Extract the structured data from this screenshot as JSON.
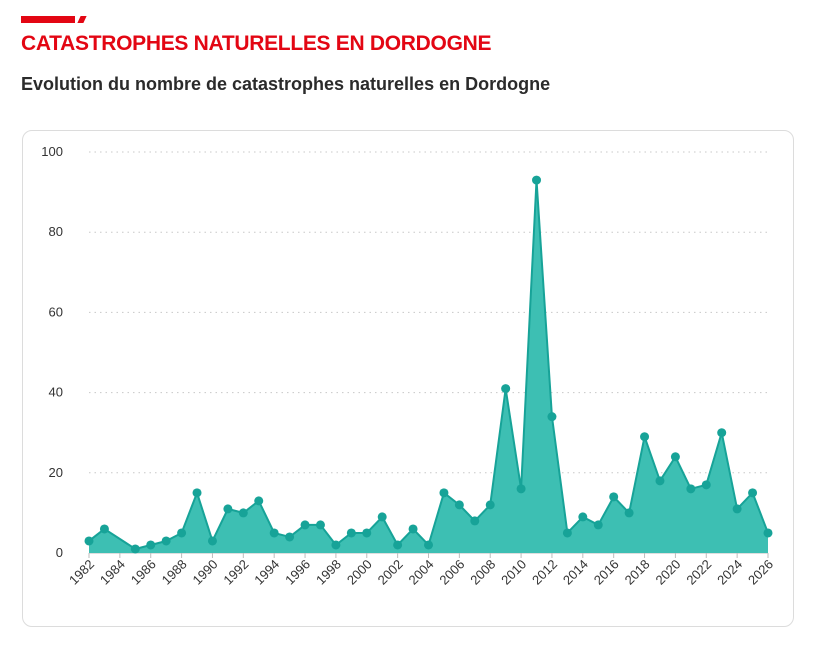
{
  "header": {
    "section_title": "CATASTROPHES NATURELLES EN DORDOGNE",
    "chart_title": "Evolution du nombre de catastrophes naturelles en Dordogne"
  },
  "colors": {
    "accent": "#e30613",
    "series_line": "#17a398",
    "series_fill": "#3dbfb3"
  },
  "chart_data": {
    "type": "area",
    "title": "Evolution du nombre de catastrophes naturelles en Dordogne",
    "xlabel": "",
    "ylabel": "",
    "ylim": [
      0,
      100
    ],
    "yticks": [
      0,
      20,
      40,
      60,
      80,
      100
    ],
    "xlim": [
      1982,
      2026
    ],
    "xticks": [
      1982,
      1984,
      1986,
      1988,
      1990,
      1992,
      1994,
      1996,
      1998,
      2000,
      2002,
      2004,
      2006,
      2008,
      2010,
      2012,
      2014,
      2016,
      2018,
      2020,
      2022,
      2024,
      2026
    ],
    "grid": "horizontal dotted",
    "series": [
      {
        "x": [
          1982,
          1983,
          1985,
          1986,
          1987,
          1988,
          1989,
          1990,
          1991,
          1992,
          1993,
          1994,
          1995,
          1996,
          1997,
          1998,
          1999,
          2000,
          2001,
          2002,
          2003,
          2004,
          2005,
          2006,
          2007,
          2008,
          2009,
          2010,
          2011,
          2012,
          2013,
          2014,
          2015,
          2016,
          2017,
          2018,
          2019,
          2020,
          2021,
          2022,
          2023,
          2024,
          2025,
          2026
        ],
        "values": [
          3,
          6,
          1,
          2,
          3,
          5,
          15,
          3,
          11,
          10,
          13,
          5,
          4,
          7,
          7,
          2,
          5,
          5,
          9,
          2,
          6,
          2,
          15,
          12,
          8,
          12,
          41,
          16,
          93,
          34,
          5,
          9,
          7,
          14,
          10,
          29,
          18,
          24,
          16,
          17,
          30,
          11,
          15,
          5
        ]
      }
    ]
  }
}
